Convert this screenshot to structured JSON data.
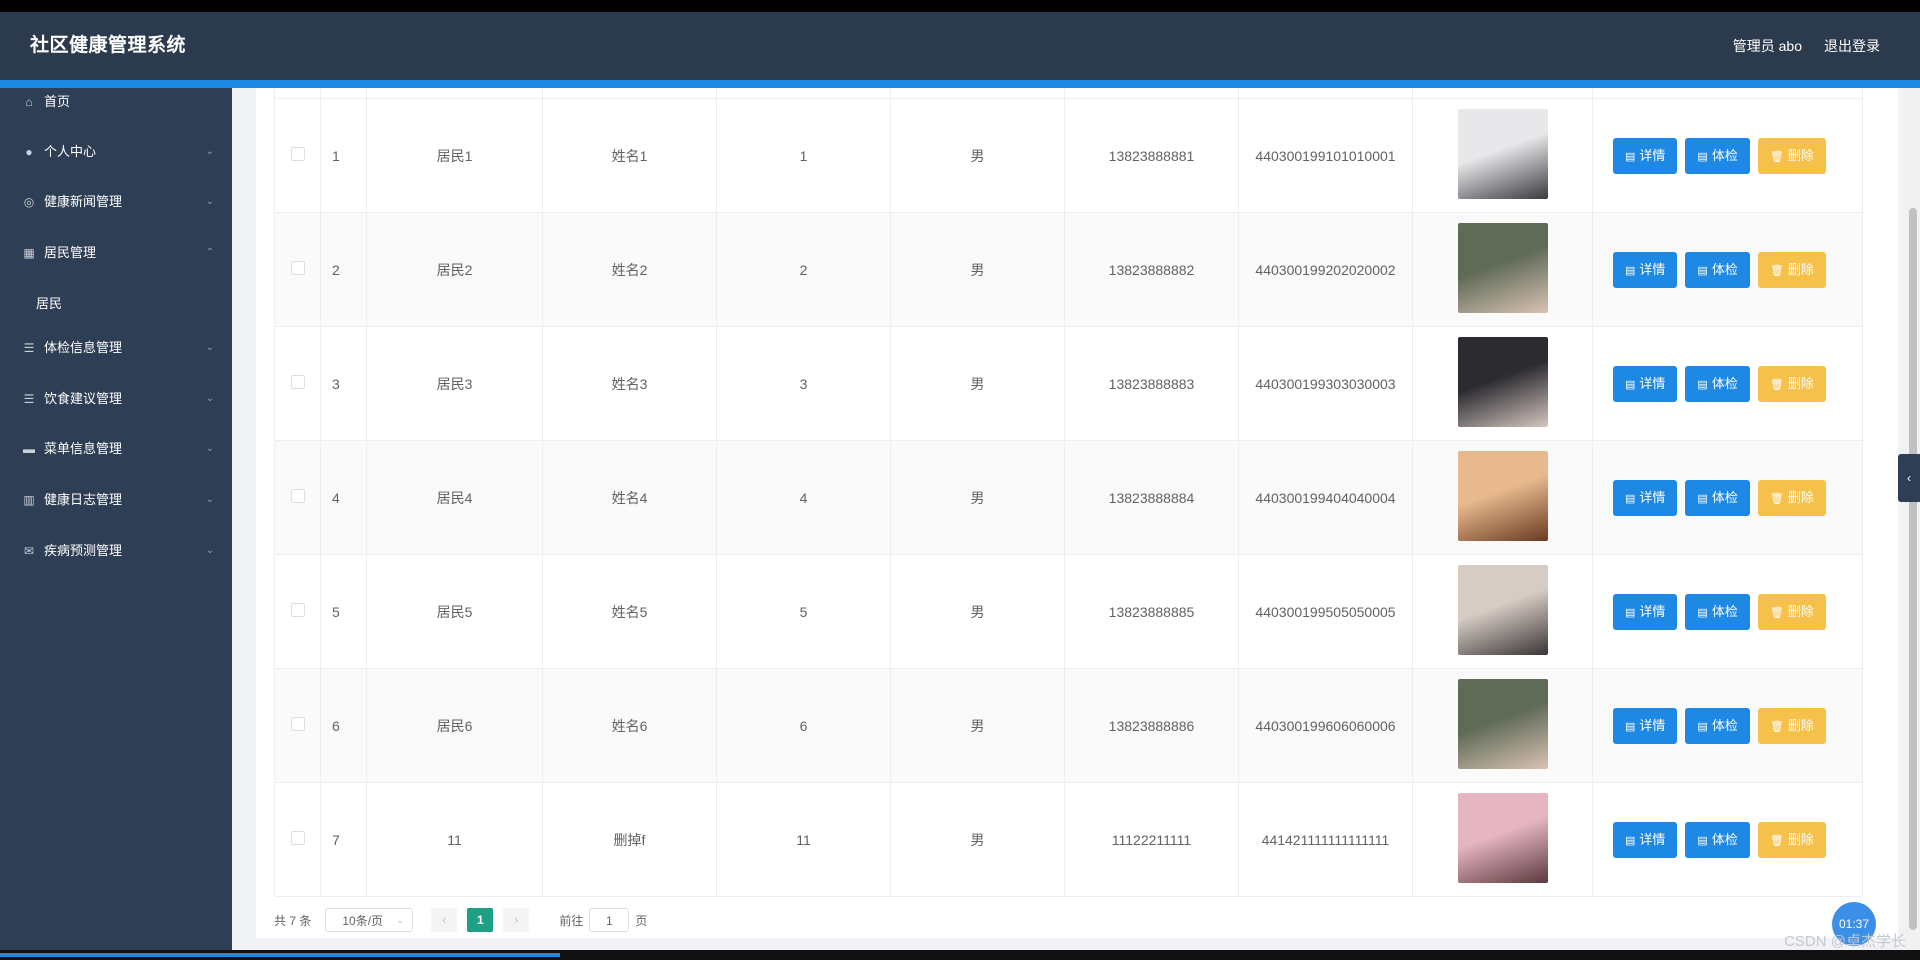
{
  "header": {
    "title": "社区健康管理系统",
    "admin": "管理员 abo",
    "logout": "退出登录"
  },
  "sidebar": {
    "items": [
      {
        "label": "首页",
        "icon": "home-icon",
        "glyph": "⌂",
        "expand": ""
      },
      {
        "label": "个人中心",
        "icon": "user-icon",
        "glyph": "●",
        "expand": "⌄"
      },
      {
        "label": "健康新闻管理",
        "icon": "news-icon",
        "glyph": "◎",
        "expand": "⌄"
      },
      {
        "label": "居民管理",
        "icon": "grid-icon",
        "glyph": "▦",
        "expand": "⌃"
      },
      {
        "label": "体检信息管理",
        "icon": "list-icon",
        "glyph": "☰",
        "expand": "⌄"
      },
      {
        "label": "饮食建议管理",
        "icon": "list-icon",
        "glyph": "☰",
        "expand": "⌄"
      },
      {
        "label": "菜单信息管理",
        "icon": "menu-icon",
        "glyph": "▬",
        "expand": "⌄"
      },
      {
        "label": "健康日志管理",
        "icon": "chart-icon",
        "glyph": "▥",
        "expand": "⌄"
      },
      {
        "label": "疾病预测管理",
        "icon": "mail-icon",
        "glyph": "✉",
        "expand": "⌄"
      }
    ],
    "sub_item": "居民"
  },
  "table": {
    "rows": [
      {
        "index": "1",
        "account": "居民1",
        "name": "姓名1",
        "age": "1",
        "gender": "男",
        "phone": "13823888881",
        "idcard": "440300199101010001",
        "photo_colors": [
          "#e8e8ea",
          "#3a3a3f"
        ]
      },
      {
        "index": "2",
        "account": "居民2",
        "name": "姓名2",
        "age": "2",
        "gender": "男",
        "phone": "13823888882",
        "idcard": "440300199202020002",
        "photo_colors": [
          "#5f6b57",
          "#d9c2b4"
        ]
      },
      {
        "index": "3",
        "account": "居民3",
        "name": "姓名3",
        "age": "3",
        "gender": "男",
        "phone": "13823888883",
        "idcard": "440300199303030003",
        "photo_colors": [
          "#2b2b30",
          "#d5c6c0"
        ]
      },
      {
        "index": "4",
        "account": "居民4",
        "name": "姓名4",
        "age": "4",
        "gender": "男",
        "phone": "13823888884",
        "idcard": "440300199404040004",
        "photo_colors": [
          "#e8b98d",
          "#6a3a22"
        ]
      },
      {
        "index": "5",
        "account": "居民5",
        "name": "姓名5",
        "age": "5",
        "gender": "男",
        "phone": "13823888885",
        "idcard": "440300199505050005",
        "photo_colors": [
          "#d7ccc4",
          "#3a3536"
        ]
      },
      {
        "index": "6",
        "account": "居民6",
        "name": "姓名6",
        "age": "6",
        "gender": "男",
        "phone": "13823888886",
        "idcard": "440300199606060006",
        "photo_colors": [
          "#5f6b57",
          "#d9c2b4"
        ]
      },
      {
        "index": "7",
        "account": "11",
        "name": "删掉f",
        "age": "11",
        "gender": "男",
        "phone": "11122211111",
        "idcard": "441421111111111111",
        "photo_colors": [
          "#e6b5c2",
          "#5b3a3e"
        ]
      }
    ],
    "actions": {
      "detail": "详情",
      "checkup": "体检",
      "delete": "删除"
    }
  },
  "pagination": {
    "total": "共 7 条",
    "page_size": "10条/页",
    "prev": "‹",
    "next": "›",
    "current": "1",
    "goto_label": "前往",
    "goto_value": "1",
    "page_unit": "页"
  },
  "overlay": {
    "timer": "01:37",
    "watermark": "CSDN @卓杰学长"
  },
  "colors": {
    "header_bg": "#2b3a4d",
    "accent_blue": "#1e88e5",
    "delete_yellow": "#f5c14b",
    "page_active": "#1fa085"
  }
}
